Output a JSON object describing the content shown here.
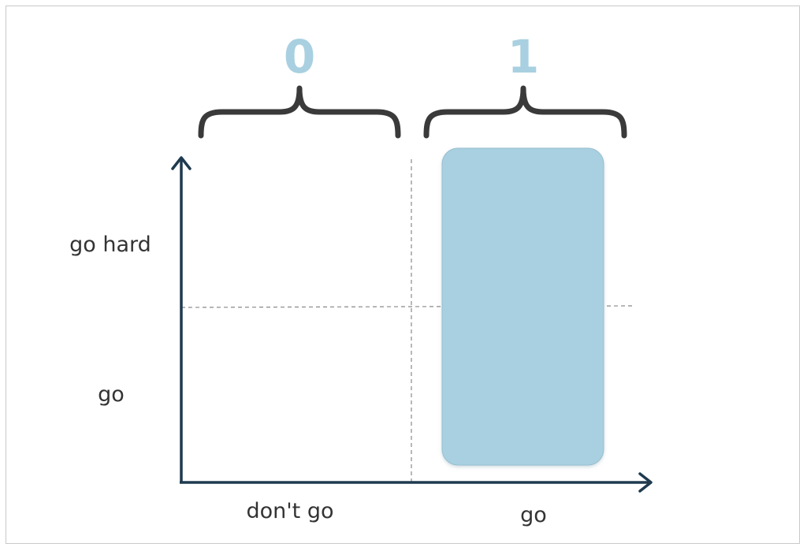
{
  "bits": {
    "zero": "0",
    "one": "1"
  },
  "y_axis": {
    "upper_label": "go hard",
    "lower_label": "go"
  },
  "x_axis": {
    "left_label": "don't go",
    "right_label": "go"
  },
  "colors": {
    "axis": "#1f3a4f",
    "brace": "#3a3a3a",
    "bit_text": "#a9d0e0",
    "highlight_fill": "#a9d0e0",
    "guide_line": "#888888",
    "label_text": "#333333"
  }
}
